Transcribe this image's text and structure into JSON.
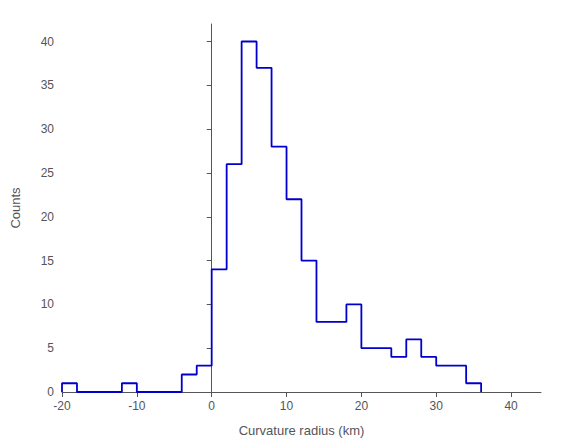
{
  "chart_data": {
    "type": "histogram",
    "bins": [
      -20,
      -18,
      -16,
      -14,
      -12,
      -10,
      -8,
      -6,
      -4,
      -2,
      0,
      2,
      4,
      6,
      8,
      10,
      12,
      14,
      16,
      18,
      20,
      22,
      24,
      26,
      28,
      30,
      32,
      34,
      36
    ],
    "values": [
      1,
      0,
      0,
      0,
      1,
      0,
      0,
      0,
      2,
      3,
      14,
      26,
      40,
      37,
      28,
      22,
      15,
      8,
      8,
      10,
      5,
      5,
      4,
      6,
      4,
      3,
      3,
      1
    ],
    "color": "#0000cc",
    "xlabel": "Curvature radius (km)",
    "ylabel": "Counts",
    "xlim": [
      -20,
      44
    ],
    "ylim": [
      0,
      42
    ],
    "xticks": [
      -20,
      -10,
      0,
      10,
      20,
      30,
      40
    ],
    "yticks": [
      0,
      5,
      10,
      15,
      20,
      25,
      30,
      35,
      40
    ],
    "grid": false
  }
}
